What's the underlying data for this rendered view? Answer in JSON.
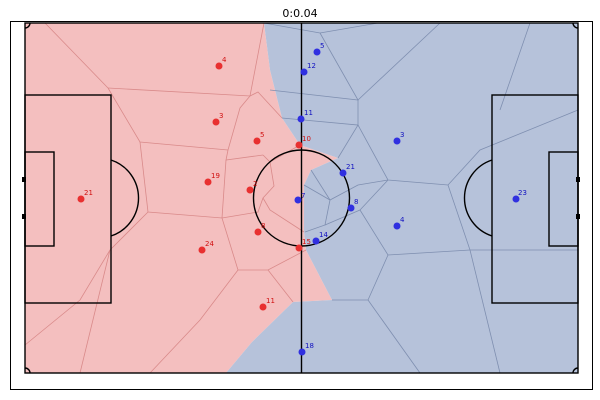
{
  "title": "0:0.04",
  "colors": {
    "red_region": "#f4bfbf",
    "blue_region": "#b6c2da",
    "red_border": "#d98a8a",
    "blue_border": "#7f8fb0",
    "red_player": "#e83030",
    "blue_player": "#3030e0",
    "red_label": "#d01010",
    "blue_label": "#1010c0",
    "lines": "#000000"
  },
  "red_players": [
    {
      "num": "4"
    },
    {
      "num": "3"
    },
    {
      "num": "5"
    },
    {
      "num": "10"
    },
    {
      "num": "19"
    },
    {
      "num": "2"
    },
    {
      "num": "21"
    },
    {
      "num": "8"
    },
    {
      "num": "24"
    },
    {
      "num": "15"
    },
    {
      "num": "11"
    }
  ],
  "blue_players": [
    {
      "num": "5"
    },
    {
      "num": "12"
    },
    {
      "num": "11"
    },
    {
      "num": "3"
    },
    {
      "num": "21"
    },
    {
      "num": "7"
    },
    {
      "num": "8"
    },
    {
      "num": "4"
    },
    {
      "num": "14"
    },
    {
      "num": "23"
    },
    {
      "num": "18"
    }
  ]
}
